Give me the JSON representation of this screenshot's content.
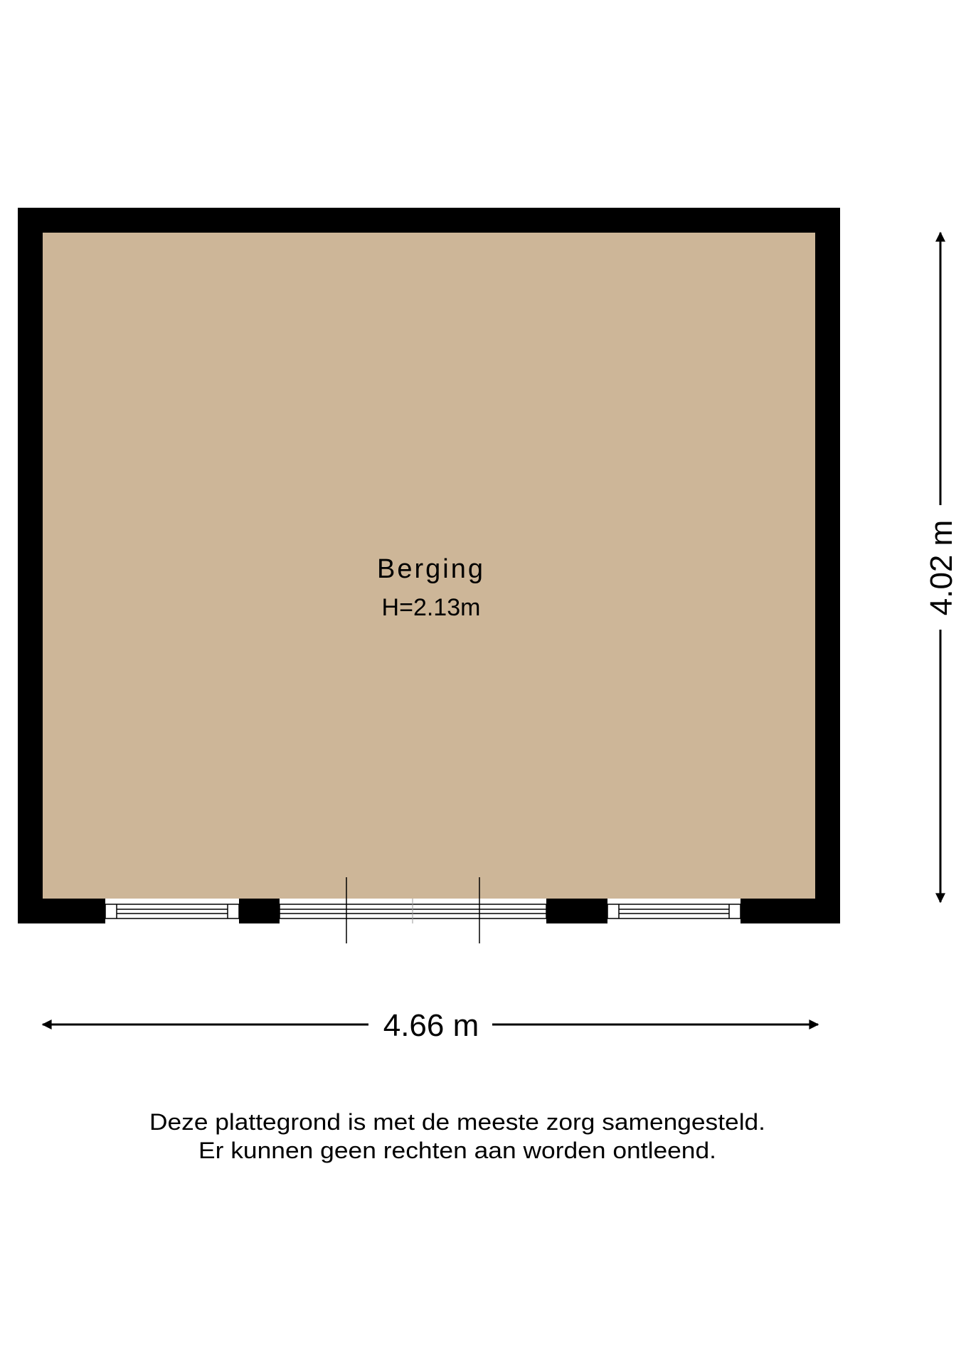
{
  "room": {
    "name": "Berging",
    "height_label": "H=2.13m"
  },
  "dimensions": {
    "width_label": "4.66 m",
    "depth_label": "4.02 m"
  },
  "colors": {
    "floor": "#cdb698",
    "wall": "#000000",
    "background": "#ffffff"
  },
  "footer": {
    "line1": "Deze plattegrond is met de meeste zorg samengesteld.",
    "line2": "Er kunnen geen rechten aan worden ontleend."
  }
}
